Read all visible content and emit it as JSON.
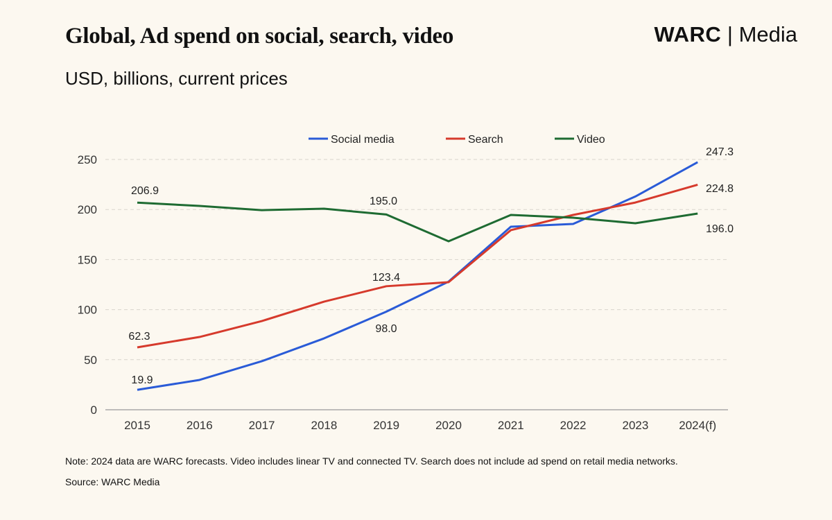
{
  "title": "Global, Ad spend on social, search, video",
  "subtitle": "USD, billions, current prices",
  "logo": {
    "brand": "WARC",
    "divider": "|",
    "product": "Media"
  },
  "note": "Note: 2024 data are WARC forecasts. Video includes linear TV and connected TV. Search does not include ad spend on retail media networks.",
  "source": "Source: WARC Media",
  "chart_data": {
    "type": "line",
    "categories": [
      "2015",
      "2016",
      "2017",
      "2018",
      "2019",
      "2020",
      "2021",
      "2022",
      "2023",
      "2024(f)"
    ],
    "ylim": [
      0,
      250
    ],
    "yticks": [
      0,
      50,
      100,
      150,
      200,
      250
    ],
    "grid": true,
    "legend": "top",
    "series": [
      {
        "name": "Social media",
        "color": "#2a5bd7",
        "values": [
          19.9,
          29.8,
          48.5,
          71.3,
          98.0,
          128.0,
          182.8,
          185.6,
          213.0,
          247.3
        ],
        "labels": {
          "0": "19.9",
          "4": "98.0",
          "9": "247.3"
        }
      },
      {
        "name": "Search",
        "color": "#d63a2c",
        "values": [
          62.3,
          72.7,
          88.6,
          108.0,
          123.4,
          127.4,
          179.4,
          194.6,
          207.0,
          224.8
        ],
        "labels": {
          "0": "62.3",
          "4": "123.4",
          "9": "224.8"
        }
      },
      {
        "name": "Video",
        "color": "#1e6b32",
        "values": [
          206.9,
          203.6,
          199.4,
          200.8,
          195.0,
          168.3,
          194.6,
          191.8,
          186.3,
          196.0
        ],
        "labels": {
          "0": "206.9",
          "4": "195.0",
          "9": "196.0"
        }
      }
    ]
  }
}
